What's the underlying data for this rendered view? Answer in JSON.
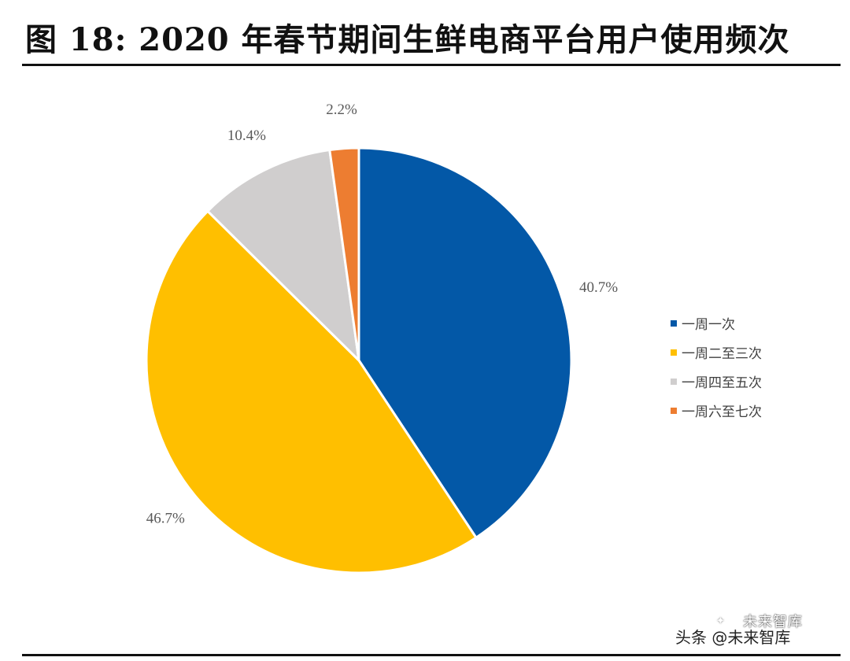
{
  "title": "图  18: 2020 年春节期间生鲜电商平台用户使用频次",
  "chart_data": {
    "type": "pie",
    "title": "图  18: 2020 年春节期间生鲜电商平台用户使用频次",
    "slices": [
      {
        "name": "一周一次",
        "value": 40.7,
        "label": "40.7%",
        "color": "#0358A7"
      },
      {
        "name": "一周二至三次",
        "value": 46.7,
        "label": "46.7%",
        "color": "#FFBF00"
      },
      {
        "name": "一周四至五次",
        "value": 10.4,
        "label": "10.4%",
        "color": "#D0CECE"
      },
      {
        "name": "一周六至七次",
        "value": 2.2,
        "label": "2.2%",
        "color": "#ED7D31"
      }
    ],
    "start_angle": "12 o'clock",
    "direction": "clockwise",
    "legend_position": "right"
  },
  "watermark": {
    "source": "头条 @未来智库",
    "logo_text": "✦",
    "account": "未来智库"
  }
}
